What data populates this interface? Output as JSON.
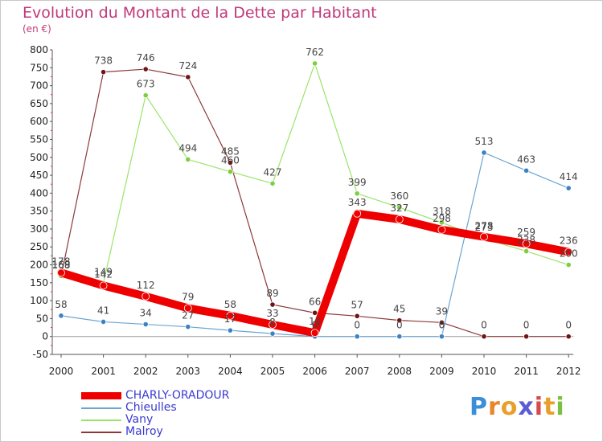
{
  "chart_data": {
    "type": "line",
    "title": "Evolution du Montant de la Dette par Habitant",
    "subtitle": "(en €)",
    "x": [
      "2000",
      "2001",
      "2002",
      "2003",
      "2004",
      "2005",
      "2006",
      "2007",
      "2008",
      "2009",
      "2010",
      "2011",
      "2012"
    ],
    "ylim": [
      -50,
      800
    ],
    "yticks": [
      "800",
      "750",
      "700",
      "650",
      "600",
      "550",
      "500",
      "450",
      "400",
      "350",
      "300",
      "250",
      "200",
      "150",
      "100",
      "50",
      "0",
      "-50"
    ],
    "grid": false,
    "legend_position": "bottom-left",
    "series": [
      {
        "name": "CHARLY-ORADOUR",
        "color": "#ee0000",
        "marker": "#ee0000",
        "values": [
          178,
          142,
          112,
          79,
          58,
          33,
          10,
          343,
          327,
          298,
          278,
          259,
          236
        ],
        "labels": [
          "178",
          "142",
          "112",
          "79",
          "58",
          "33",
          "10",
          "343",
          "327",
          "298",
          "278",
          "259",
          "236"
        ]
      },
      {
        "name": "Chieulles",
        "color": "#6aa6d4",
        "marker": "#3b82c4",
        "values": [
          58,
          41,
          34,
          27,
          17,
          8,
          0,
          0,
          0,
          0,
          513,
          463,
          414
        ],
        "labels": [
          "58",
          "41",
          "34",
          "27",
          "17",
          "8",
          "0",
          "0",
          "0",
          "0",
          "513",
          "463",
          "414"
        ]
      },
      {
        "name": "Vany",
        "color": "#9ce36a",
        "marker": "#7ccf3f",
        "values": [
          169,
          149,
          673,
          494,
          460,
          427,
          762,
          399,
          360,
          318,
          273,
          238,
          200
        ],
        "labels": [
          "169",
          "149",
          "673",
          "494",
          "460",
          "427",
          "762",
          "399",
          "360",
          "318",
          "273",
          "238",
          "200"
        ]
      },
      {
        "name": "Malroy",
        "color": "#8b3a3a",
        "marker": "#6e1414",
        "values": [
          168,
          738,
          746,
          724,
          485,
          89,
          66,
          57,
          45,
          39,
          0,
          0,
          0
        ],
        "labels": [
          "168",
          "738",
          "746",
          "724",
          "485",
          "89",
          "66",
          "57",
          "45",
          "39",
          "0",
          "0",
          "0"
        ]
      }
    ]
  },
  "brand": {
    "text": "Proxiti",
    "letters": [
      "P",
      "r",
      "o",
      "x",
      "i",
      "t",
      "i"
    ],
    "colors": [
      "#3b8fd9",
      "#e8862a",
      "#e8a02a",
      "#5b5bd6",
      "#d64c4c",
      "#e8a02a",
      "#7cc040"
    ]
  }
}
